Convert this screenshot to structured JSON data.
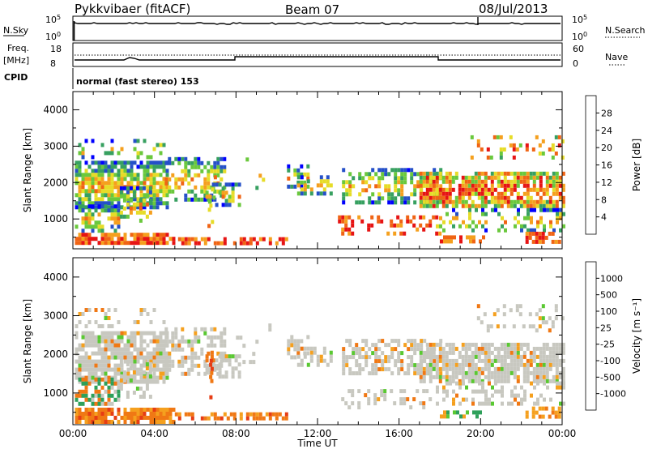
{
  "header": {
    "station": "Pykkvibaer (fitACF)",
    "beam": "Beam 07",
    "date": "08/Jul/2013"
  },
  "nsky_panel": {
    "left_label": "N.Sky",
    "right_label": "N.Search",
    "left_ticks": [
      "10^5",
      "10^0"
    ],
    "right_ticks": [
      "10^5",
      "10^0"
    ]
  },
  "freq_panel": {
    "left_label_line1": "Freq.",
    "left_label_line2": "[MHz]",
    "right_label": "Nave",
    "left_ticks": [
      "18",
      "8"
    ],
    "right_ticks": [
      "60",
      "0"
    ]
  },
  "cpid": {
    "label": "CPID",
    "mode": "normal (fast stereo) 153"
  },
  "colors": {
    "scatter_background": "#ffffff",
    "ground_scatter": "#c8c8c0",
    "missing_data": "#ffffff"
  },
  "chart_data": [
    {
      "type": "heatmap",
      "name": "power",
      "xlabel": "",
      "ylabel": "Slant Range [km]",
      "ylim": [
        180,
        4500
      ],
      "yticks": [
        "1000",
        "2000",
        "3000",
        "4000"
      ],
      "xlim_hours": [
        0,
        24
      ],
      "xtick_labels": [
        "00:00",
        "04:00",
        "08:00",
        "12:00",
        "16:00",
        "20:00",
        "00:00"
      ],
      "colorbar": {
        "label": "Power [dB]",
        "ticks": [
          "4",
          "8",
          "12",
          "16",
          "20",
          "24",
          "28"
        ],
        "colors": [
          "#0000ff",
          "#2550c8",
          "#37a060",
          "#6ac83c",
          "#e6dc28",
          "#f5a01e",
          "#f06414",
          "#e61414"
        ]
      }
    },
    {
      "type": "heatmap",
      "name": "velocity",
      "xlabel": "Time UT",
      "ylabel": "Slant Range [km]",
      "ylim": [
        180,
        4500
      ],
      "yticks": [
        "1000",
        "2000",
        "3000",
        "4000"
      ],
      "xlim_hours": [
        0,
        24
      ],
      "xtick_labels": [
        "00:00",
        "04:00",
        "08:00",
        "12:00",
        "16:00",
        "20:00",
        "00:00"
      ],
      "colorbar": {
        "label": "Velocity [m s⁻¹]",
        "ticks": [
          "1000",
          "500",
          "100",
          "25",
          "-25",
          "-100",
          "-500",
          "-1000"
        ],
        "colors": [
          "#1e46dc",
          "#2f8cbe",
          "#2ea05a",
          "#5ac832",
          "#c8c8c0",
          "#f5a01e",
          "#f07814",
          "#e63c14",
          "#e61414"
        ]
      }
    }
  ]
}
